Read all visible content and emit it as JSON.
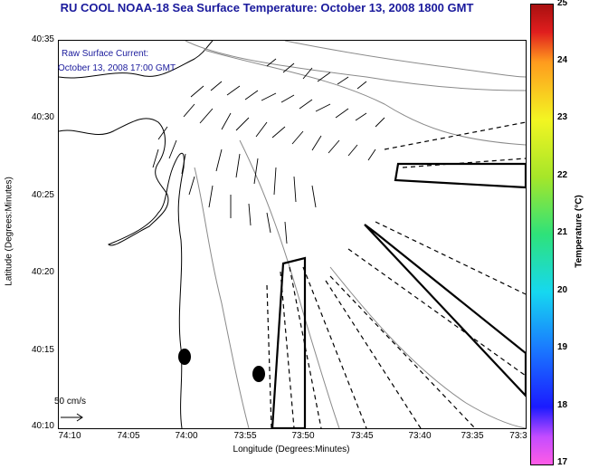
{
  "title": "RU COOL  NOAA-18  Sea Surface Temperature:  October 13, 2008 1800 GMT",
  "legend": {
    "line1": "Raw Surface Current:",
    "line2": "October 13, 2008 17:00 GMT"
  },
  "scale_label": "50 cm/s",
  "axes": {
    "xlabel": "Longitude (Degrees:Minutes)",
    "ylabel": "Latitude (Degrees:Minutes)",
    "y_ticks": [
      "40:35",
      "40:30",
      "40:25",
      "40:20",
      "40:15",
      "40:10"
    ],
    "x_ticks": [
      "74:10",
      "74:05",
      "74:00",
      "73:55",
      "73:50",
      "73:45",
      "73:40",
      "73:35",
      "73:3"
    ]
  },
  "colorbar": {
    "label": "Temperature (°C)",
    "ticks": [
      "25",
      "24",
      "23",
      "22",
      "21",
      "20",
      "19",
      "18",
      "17"
    ],
    "colors": [
      "#a81010",
      "#e01e1e",
      "#ff9b1e",
      "#f3f522",
      "#a6e629",
      "#2ee27a",
      "#16d8f0",
      "#1a78ff",
      "#1b1bff",
      "#c44cff",
      "#ff5ce6"
    ]
  }
}
